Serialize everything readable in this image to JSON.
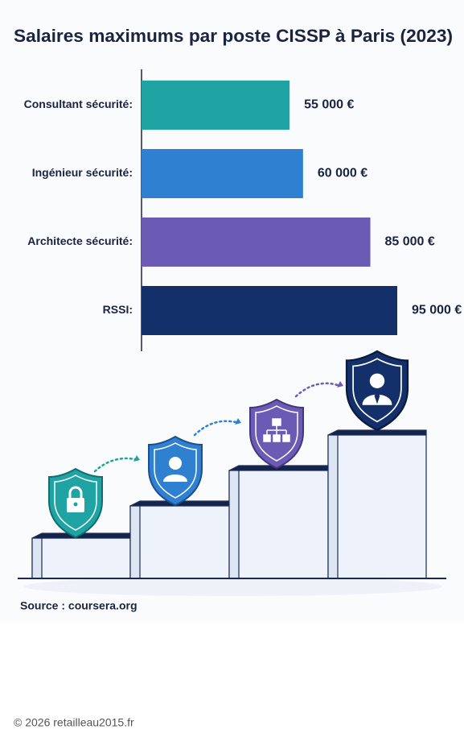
{
  "chart_data": {
    "type": "bar",
    "orientation": "horizontal",
    "title": "Salaires maximums par poste CISSP à Paris (2023)",
    "categories": [
      "Consultant sécurité:",
      "Ingénieur sécurité:",
      "Architecte sécurité:",
      "RSSI:"
    ],
    "values": [
      55000,
      60000,
      85000,
      95000
    ],
    "value_labels": [
      "55 000 €",
      "60 000 €",
      "85 000 €",
      "95 000 €"
    ],
    "colors": [
      "#1fa3a3",
      "#2f80d0",
      "#6b5bb5",
      "#14306b"
    ],
    "source": "Source : coursera.org"
  },
  "footer": "© 2026 retailleau2015.fr"
}
